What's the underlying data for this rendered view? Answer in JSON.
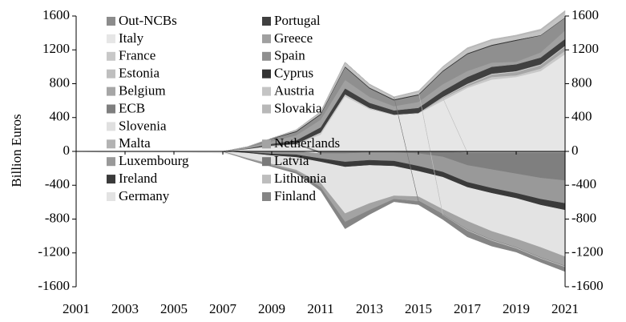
{
  "chart_data": {
    "type": "stacked-area",
    "y_label": "Billion Euros",
    "x": [
      2001,
      2002,
      2003,
      2004,
      2005,
      2006,
      2007,
      2008,
      2009,
      2010,
      2011,
      2012,
      2013,
      2014,
      2015,
      2016,
      2017,
      2018,
      2019,
      2020,
      2021
    ],
    "xlim": [
      2001,
      2021
    ],
    "xticks": [
      2001,
      2003,
      2005,
      2007,
      2009,
      2011,
      2013,
      2015,
      2017,
      2019,
      2021
    ],
    "ylim": [
      -1600,
      1600
    ],
    "yticks": [
      -1600,
      -1200,
      -800,
      -400,
      0,
      400,
      800,
      1200,
      1600
    ],
    "y2lim": [
      -1600,
      1600
    ],
    "y2ticks": [
      -1600,
      -1200,
      -800,
      -400,
      0,
      400,
      800,
      1200,
      1600
    ],
    "series": [
      {
        "name": "Out-NCBs",
        "color": "#8c8c8c",
        "values": [
          0,
          0,
          0,
          0,
          0,
          0,
          0,
          0,
          0,
          0,
          -5,
          -5,
          -5,
          -5,
          -5,
          -5,
          -10,
          -10,
          -10,
          -10,
          -10
        ]
      },
      {
        "name": "Italy",
        "color": "#e6e6e6",
        "values": [
          0,
          0,
          0,
          0,
          0,
          0,
          0,
          30,
          60,
          80,
          200,
          650,
          500,
          430,
          450,
          600,
          750,
          850,
          880,
          950,
          1150
        ]
      },
      {
        "name": "France",
        "color": "#c8c8c8",
        "values": [
          0,
          0,
          0,
          0,
          0,
          0,
          0,
          0,
          10,
          10,
          20,
          20,
          10,
          0,
          0,
          30,
          20,
          30,
          20,
          30,
          40
        ]
      },
      {
        "name": "Estonia",
        "color": "#bfbfbf",
        "values": [
          0,
          0,
          0,
          0,
          0,
          0,
          0,
          0,
          0,
          0,
          0,
          0,
          0,
          0,
          0,
          0,
          -5,
          -5,
          -5,
          -5,
          -5
        ]
      },
      {
        "name": "Belgium",
        "color": "#a6a6a6",
        "values": [
          0,
          0,
          0,
          0,
          0,
          0,
          0,
          0,
          0,
          0,
          0,
          0,
          0,
          0,
          0,
          10,
          20,
          30,
          40,
          40,
          50
        ]
      },
      {
        "name": "ECB",
        "color": "#7f7f7f",
        "values": [
          0,
          0,
          0,
          0,
          0,
          0,
          0,
          0,
          0,
          0,
          -20,
          -20,
          -10,
          -10,
          -20,
          -60,
          -150,
          -200,
          -250,
          -300,
          -330
        ]
      },
      {
        "name": "Slovenia",
        "color": "#e0e0e0",
        "values": [
          0,
          0,
          0,
          0,
          0,
          0,
          0,
          0,
          0,
          0,
          5,
          5,
          5,
          5,
          5,
          5,
          5,
          5,
          5,
          5,
          5
        ]
      },
      {
        "name": "Malta",
        "color": "#b3b3b3",
        "values": [
          0,
          0,
          0,
          0,
          0,
          0,
          0,
          0,
          0,
          0,
          0,
          0,
          0,
          0,
          0,
          0,
          5,
          5,
          5,
          5,
          5
        ]
      },
      {
        "name": "Luxembourg",
        "color": "#999999",
        "values": [
          0,
          0,
          0,
          0,
          0,
          0,
          0,
          -10,
          -30,
          -40,
          -60,
          -100,
          -90,
          -100,
          -150,
          -180,
          -200,
          -220,
          -230,
          -250,
          -270
        ]
      },
      {
        "name": "Ireland",
        "color": "#3a3a3a",
        "values": [
          0,
          0,
          0,
          0,
          0,
          0,
          0,
          -10,
          -20,
          -30,
          -40,
          -60,
          -60,
          -60,
          -60,
          -60,
          -60,
          -60,
          -60,
          -70,
          -80
        ]
      },
      {
        "name": "Germany",
        "color": "#e3e3e3",
        "values": [
          0,
          -10,
          -10,
          -10,
          -10,
          -15,
          -20,
          -60,
          -100,
          -150,
          -250,
          -550,
          -450,
          -350,
          -300,
          -380,
          -400,
          -450,
          -480,
          -500,
          -550
        ]
      },
      {
        "name": "Portugal",
        "color": "#404040",
        "values": [
          0,
          0,
          0,
          0,
          0,
          0,
          0,
          5,
          20,
          40,
          60,
          70,
          60,
          50,
          60,
          70,
          80,
          80,
          80,
          80,
          80
        ]
      },
      {
        "name": "Greece",
        "color": "#a0a0a0",
        "values": [
          0,
          0,
          0,
          0,
          0,
          0,
          0,
          10,
          30,
          60,
          90,
          100,
          70,
          50,
          70,
          80,
          70,
          50,
          30,
          60,
          100
        ]
      },
      {
        "name": "Spain",
        "color": "#8f8f8f",
        "values": [
          0,
          0,
          0,
          0,
          0,
          0,
          0,
          10,
          30,
          40,
          60,
          150,
          100,
          70,
          80,
          150,
          200,
          200,
          250,
          200,
          150
        ]
      },
      {
        "name": "Cyprus",
        "color": "#333333",
        "values": [
          0,
          0,
          0,
          0,
          0,
          0,
          0,
          0,
          5,
          10,
          10,
          10,
          10,
          10,
          10,
          10,
          10,
          10,
          10,
          5,
          5
        ]
      },
      {
        "name": "Austria",
        "color": "#c4c4c4",
        "values": [
          0,
          0,
          0,
          0,
          0,
          0,
          0,
          0,
          0,
          10,
          20,
          40,
          30,
          20,
          30,
          40,
          50,
          50,
          40,
          50,
          60
        ]
      },
      {
        "name": "Slovakia",
        "color": "#b8b8b8",
        "values": [
          0,
          0,
          0,
          0,
          0,
          0,
          0,
          0,
          0,
          5,
          5,
          10,
          10,
          10,
          10,
          10,
          15,
          15,
          15,
          20,
          20
        ]
      },
      {
        "name": "Netherlands",
        "color": "#a3a3a3",
        "values": [
          0,
          0,
          0,
          0,
          0,
          0,
          0,
          -10,
          -20,
          -20,
          -50,
          -100,
          -80,
          -40,
          -50,
          -60,
          -100,
          -100,
          -100,
          -120,
          -110
        ]
      },
      {
        "name": "Latvia",
        "color": "#7a7a7a",
        "values": [
          0,
          0,
          0,
          0,
          0,
          0,
          0,
          0,
          0,
          0,
          0,
          0,
          0,
          0,
          -5,
          -5,
          -5,
          -5,
          -5,
          -5,
          -5
        ]
      },
      {
        "name": "Lithuania",
        "color": "#bdbdbd",
        "values": [
          0,
          0,
          0,
          0,
          0,
          0,
          0,
          0,
          0,
          0,
          0,
          0,
          0,
          0,
          0,
          -5,
          -10,
          -10,
          -10,
          -10,
          -10
        ]
      },
      {
        "name": "Finland",
        "color": "#858585",
        "values": [
          0,
          0,
          0,
          0,
          0,
          0,
          0,
          -5,
          -10,
          -20,
          -40,
          -80,
          -50,
          -30,
          -40,
          -50,
          -70,
          -60,
          -40,
          -40,
          -50
        ]
      }
    ]
  }
}
